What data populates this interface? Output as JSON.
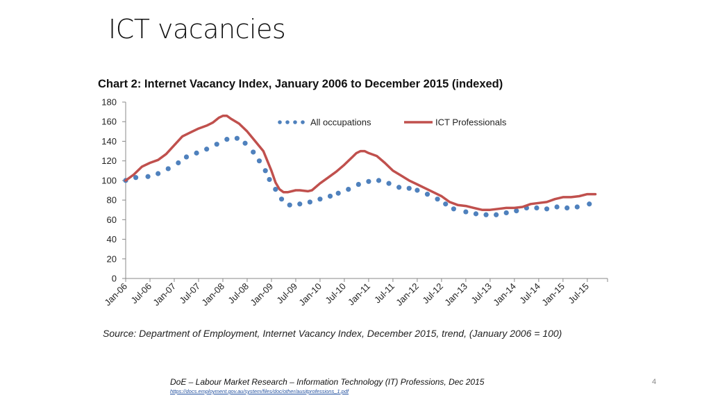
{
  "slide": {
    "title": "ICT vacancies",
    "footer_text": "DoE – Labour Market Research – Information Technology (IT) Professions, Dec 2015",
    "footer_link": "https://docs.employment.gov.au/system/files/doc/other/ausitprofessions_1.pdf",
    "page_number": "4"
  },
  "chart_data": {
    "type": "line",
    "title": "Chart 2: Internet Vacancy Index, January 2006 to December 2015 (indexed)",
    "source": "Source: Department of Employment, Internet Vacancy Index, December 2015, trend, (January 2006 = 100)",
    "ylim": [
      0,
      180
    ],
    "yticks": [
      0,
      20,
      40,
      60,
      80,
      100,
      120,
      140,
      160,
      180
    ],
    "xlim": [
      0,
      119
    ],
    "xtick_labels": [
      "Jan-06",
      "Jul-06",
      "Jan-07",
      "Jul-07",
      "Jan-08",
      "Jul-08",
      "Jan-09",
      "Jul-09",
      "Jan-10",
      "Jul-10",
      "Jan-11",
      "Jul-11",
      "Jan-12",
      "Jul-12",
      "Jan-13",
      "Jul-13",
      "Jan-14",
      "Jul-14",
      "Jan-15",
      "Jul-15"
    ],
    "legend_position": "top",
    "series": [
      {
        "name": "All occupations",
        "style": "dotted",
        "color": "#4f81bd",
        "points": [
          [
            0,
            100
          ],
          [
            2.5,
            103
          ],
          [
            5.5,
            104
          ],
          [
            8,
            107
          ],
          [
            10.5,
            112
          ],
          [
            13,
            118
          ],
          [
            15,
            124
          ],
          [
            17.5,
            128
          ],
          [
            20,
            132
          ],
          [
            22.5,
            137
          ],
          [
            25,
            142
          ],
          [
            27.5,
            143
          ],
          [
            29.5,
            138
          ],
          [
            31.5,
            129
          ],
          [
            33,
            120
          ],
          [
            34.5,
            110
          ],
          [
            35.5,
            101
          ],
          [
            37,
            91
          ],
          [
            38.5,
            81
          ],
          [
            40.5,
            75
          ],
          [
            43,
            76
          ],
          [
            45.5,
            78
          ],
          [
            48,
            81
          ],
          [
            50.5,
            84
          ],
          [
            52.5,
            87
          ],
          [
            55,
            91
          ],
          [
            57.5,
            96
          ],
          [
            60,
            99
          ],
          [
            62.5,
            100
          ],
          [
            65,
            97
          ],
          [
            67.5,
            93
          ],
          [
            70,
            92
          ],
          [
            72,
            90
          ],
          [
            74.5,
            86
          ],
          [
            77,
            81
          ],
          [
            79,
            76
          ],
          [
            81,
            71
          ],
          [
            84,
            68
          ],
          [
            86.5,
            66
          ],
          [
            89,
            65
          ],
          [
            91.5,
            65
          ],
          [
            94,
            67
          ],
          [
            96.5,
            69
          ],
          [
            99,
            72
          ],
          [
            101.5,
            72
          ],
          [
            104,
            71
          ],
          [
            106.5,
            73
          ],
          [
            109,
            72
          ],
          [
            111.5,
            73
          ],
          [
            114.5,
            76
          ]
        ]
      },
      {
        "name": "ICT Professionals",
        "style": "solid",
        "color": "#c0504d",
        "points": [
          [
            0,
            100
          ],
          [
            2,
            106
          ],
          [
            4,
            114
          ],
          [
            6,
            118
          ],
          [
            8,
            121
          ],
          [
            10,
            127
          ],
          [
            12,
            136
          ],
          [
            14,
            145
          ],
          [
            16,
            149
          ],
          [
            18,
            153
          ],
          [
            20,
            156
          ],
          [
            21.5,
            159
          ],
          [
            23,
            164
          ],
          [
            24,
            166
          ],
          [
            25,
            166
          ],
          [
            26,
            163
          ],
          [
            28,
            158
          ],
          [
            30,
            150
          ],
          [
            32,
            140
          ],
          [
            34,
            130
          ],
          [
            36,
            110
          ],
          [
            37,
            98
          ],
          [
            38,
            91
          ],
          [
            39,
            88
          ],
          [
            40,
            88
          ],
          [
            42,
            90
          ],
          [
            43,
            90
          ],
          [
            45,
            89
          ],
          [
            46,
            90
          ],
          [
            48,
            97
          ],
          [
            50,
            103
          ],
          [
            52,
            109
          ],
          [
            54,
            116
          ],
          [
            56,
            124
          ],
          [
            57,
            128
          ],
          [
            58,
            130
          ],
          [
            59,
            130
          ],
          [
            60,
            128
          ],
          [
            62,
            125
          ],
          [
            64,
            118
          ],
          [
            66,
            110
          ],
          [
            68,
            105
          ],
          [
            70,
            100
          ],
          [
            72,
            96
          ],
          [
            74,
            92
          ],
          [
            76,
            88
          ],
          [
            78,
            84
          ],
          [
            80,
            78
          ],
          [
            82,
            75
          ],
          [
            84,
            74
          ],
          [
            86,
            72
          ],
          [
            88,
            70
          ],
          [
            90,
            70
          ],
          [
            92,
            71
          ],
          [
            94,
            72
          ],
          [
            96,
            72
          ],
          [
            98,
            73
          ],
          [
            100,
            76
          ],
          [
            102,
            77
          ],
          [
            104,
            78
          ],
          [
            106,
            81
          ],
          [
            108,
            83
          ],
          [
            110,
            83
          ],
          [
            112,
            84
          ],
          [
            114,
            86
          ],
          [
            116,
            86
          ]
        ]
      }
    ]
  }
}
